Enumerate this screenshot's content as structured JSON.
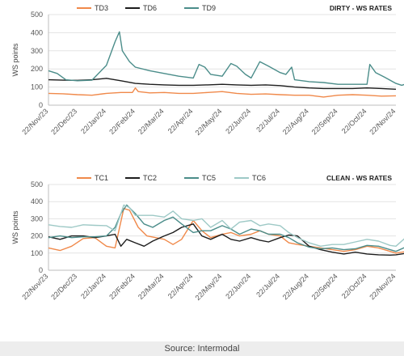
{
  "chart_data": [
    {
      "type": "line",
      "title": "DIRTY - WS RATES",
      "ylabel": "WS points",
      "ylim": [
        0,
        500
      ],
      "yticks": [
        0,
        100,
        200,
        300,
        400,
        500
      ],
      "grid": true,
      "legend_position": "top-left",
      "x_tick_labels": [
        "22/Nov/23",
        "22/Dec/23",
        "22/Jan/24",
        "22/Feb/24",
        "22/Mar/24",
        "22/Apr/24",
        "22/May/24",
        "22/Jun/24",
        "22/Jul/24",
        "22/Aug/24",
        "22/Sep/24",
        "22/Oct/24",
        "22/Nov/24"
      ],
      "series": [
        {
          "name": "TD3",
          "color": "#f0894a",
          "points": [
            [
              0,
              65
            ],
            [
              0.5,
              63
            ],
            [
              1,
              58
            ],
            [
              1.5,
              55
            ],
            [
              2,
              65
            ],
            [
              2.5,
              70
            ],
            [
              2.9,
              70
            ],
            [
              3,
              95
            ],
            [
              3.1,
              75
            ],
            [
              3.5,
              68
            ],
            [
              4,
              70
            ],
            [
              4.5,
              65
            ],
            [
              5,
              65
            ],
            [
              5.5,
              70
            ],
            [
              6,
              75
            ],
            [
              6.5,
              65
            ],
            [
              7,
              60
            ],
            [
              7.5,
              62
            ],
            [
              8,
              58
            ],
            [
              8.5,
              55
            ],
            [
              9,
              55
            ],
            [
              9.5,
              45
            ],
            [
              10,
              55
            ],
            [
              10.5,
              58
            ],
            [
              11,
              55
            ],
            [
              11.5,
              50
            ],
            [
              12,
              52
            ]
          ]
        },
        {
          "name": "TD6",
          "color": "#1d1d1d",
          "points": [
            [
              0,
              140
            ],
            [
              0.5,
              138
            ],
            [
              1,
              137
            ],
            [
              1.5,
              140
            ],
            [
              2,
              148
            ],
            [
              2.5,
              135
            ],
            [
              3,
              120
            ],
            [
              3.5,
              115
            ],
            [
              4,
              112
            ],
            [
              4.5,
              110
            ],
            [
              5,
              110
            ],
            [
              5.5,
              112
            ],
            [
              6,
              115
            ],
            [
              6.5,
              112
            ],
            [
              7,
              110
            ],
            [
              7.5,
              112
            ],
            [
              8,
              108
            ],
            [
              8.5,
              100
            ],
            [
              9,
              95
            ],
            [
              9.5,
              92
            ],
            [
              10,
              92
            ],
            [
              10.5,
              92
            ],
            [
              11,
              95
            ],
            [
              11.5,
              92
            ],
            [
              12,
              88
            ]
          ]
        },
        {
          "name": "TD9",
          "color": "#4b8d8a",
          "points": [
            [
              0,
              190
            ],
            [
              0.3,
              175
            ],
            [
              0.6,
              140
            ],
            [
              1,
              135
            ],
            [
              1.5,
              138
            ],
            [
              2,
              220
            ],
            [
              2.3,
              350
            ],
            [
              2.45,
              405
            ],
            [
              2.55,
              300
            ],
            [
              2.8,
              240
            ],
            [
              3,
              210
            ],
            [
              3.5,
              190
            ],
            [
              4,
              175
            ],
            [
              4.5,
              160
            ],
            [
              5,
              150
            ],
            [
              5.2,
              225
            ],
            [
              5.4,
              210
            ],
            [
              5.6,
              170
            ],
            [
              6,
              160
            ],
            [
              6.3,
              230
            ],
            [
              6.5,
              215
            ],
            [
              6.8,
              170
            ],
            [
              7,
              150
            ],
            [
              7.3,
              240
            ],
            [
              7.6,
              215
            ],
            [
              8,
              180
            ],
            [
              8.2,
              170
            ],
            [
              8.4,
              210
            ],
            [
              8.5,
              140
            ],
            [
              9,
              130
            ],
            [
              9.5,
              125
            ],
            [
              10,
              115
            ],
            [
              10.5,
              115
            ],
            [
              11,
              115
            ],
            [
              11.1,
              225
            ],
            [
              11.3,
              180
            ],
            [
              11.6,
              155
            ],
            [
              12,
              120
            ],
            [
              12.2,
              110
            ],
            [
              12.4,
              120
            ]
          ]
        }
      ]
    },
    {
      "type": "line",
      "title": "CLEAN - WS RATES",
      "ylabel": "WS points",
      "ylim": [
        0,
        500
      ],
      "yticks": [
        0,
        100,
        200,
        300,
        400,
        500
      ],
      "grid": true,
      "legend_position": "top-left",
      "x_tick_labels": [
        "22/Nov/23",
        "22/Dec/23",
        "22/Jan/24",
        "22/Feb/24",
        "22/Mar/24",
        "22/Apr/24",
        "22/May/24",
        "22/Jun/24",
        "22/Jul/24",
        "22/Aug/24",
        "22/Sep/24",
        "22/Oct/24",
        "22/Nov/24"
      ],
      "series": [
        {
          "name": "TC1",
          "color": "#f0894a",
          "points": [
            [
              0,
              130
            ],
            [
              0.4,
              115
            ],
            [
              0.8,
              140
            ],
            [
              1.2,
              185
            ],
            [
              1.6,
              190
            ],
            [
              2,
              140
            ],
            [
              2.3,
              130
            ],
            [
              2.6,
              360
            ],
            [
              2.8,
              350
            ],
            [
              3.1,
              250
            ],
            [
              3.4,
              200
            ],
            [
              3.7,
              190
            ],
            [
              4,
              180
            ],
            [
              4.3,
              150
            ],
            [
              4.6,
              180
            ],
            [
              5,
              290
            ],
            [
              5.3,
              230
            ],
            [
              5.6,
              190
            ],
            [
              6,
              210
            ],
            [
              6.3,
              220
            ],
            [
              6.6,
              200
            ],
            [
              7,
              210
            ],
            [
              7.3,
              230
            ],
            [
              7.6,
              210
            ],
            [
              8,
              200
            ],
            [
              8.3,
              160
            ],
            [
              8.6,
              150
            ],
            [
              9,
              140
            ],
            [
              9.4,
              130
            ],
            [
              9.8,
              120
            ],
            [
              10.2,
              110
            ],
            [
              10.6,
              120
            ],
            [
              11,
              140
            ],
            [
              11.4,
              130
            ],
            [
              11.8,
              110
            ],
            [
              12,
              100
            ],
            [
              12.4,
              110
            ]
          ]
        },
        {
          "name": "TC2",
          "color": "#1d1d1d",
          "points": [
            [
              0,
              195
            ],
            [
              0.4,
              180
            ],
            [
              0.8,
              200
            ],
            [
              1.2,
              200
            ],
            [
              1.6,
              190
            ],
            [
              2,
              200
            ],
            [
              2.3,
              210
            ],
            [
              2.5,
              140
            ],
            [
              2.7,
              180
            ],
            [
              3,
              160
            ],
            [
              3.3,
              140
            ],
            [
              3.6,
              170
            ],
            [
              4,
              200
            ],
            [
              4.3,
              220
            ],
            [
              4.6,
              250
            ],
            [
              5,
              270
            ],
            [
              5.3,
              200
            ],
            [
              5.6,
              180
            ],
            [
              6,
              210
            ],
            [
              6.3,
              180
            ],
            [
              6.6,
              170
            ],
            [
              7,
              190
            ],
            [
              7.3,
              175
            ],
            [
              7.6,
              165
            ],
            [
              8,
              190
            ],
            [
              8.3,
              205
            ],
            [
              8.6,
              200
            ],
            [
              9,
              140
            ],
            [
              9.4,
              120
            ],
            [
              9.8,
              105
            ],
            [
              10.2,
              95
            ],
            [
              10.6,
              105
            ],
            [
              11,
              95
            ],
            [
              11.4,
              90
            ],
            [
              11.8,
              88
            ],
            [
              12,
              90
            ],
            [
              12.4,
              100
            ]
          ]
        },
        {
          "name": "TC5",
          "color": "#4b8d8a",
          "points": [
            [
              0,
              190
            ],
            [
              0.4,
              200
            ],
            [
              0.8,
              190
            ],
            [
              1.2,
              195
            ],
            [
              1.6,
              195
            ],
            [
              2,
              200
            ],
            [
              2.3,
              250
            ],
            [
              2.5,
              330
            ],
            [
              2.7,
              380
            ],
            [
              3,
              330
            ],
            [
              3.3,
              270
            ],
            [
              3.6,
              250
            ],
            [
              4,
              290
            ],
            [
              4.3,
              310
            ],
            [
              4.6,
              270
            ],
            [
              5,
              220
            ],
            [
              5.3,
              230
            ],
            [
              5.6,
              230
            ],
            [
              6,
              260
            ],
            [
              6.3,
              240
            ],
            [
              6.6,
              210
            ],
            [
              7,
              240
            ],
            [
              7.3,
              230
            ],
            [
              7.6,
              210
            ],
            [
              8,
              210
            ],
            [
              8.3,
              190
            ],
            [
              8.6,
              160
            ],
            [
              9,
              135
            ],
            [
              9.4,
              125
            ],
            [
              9.8,
              130
            ],
            [
              10.2,
              120
            ],
            [
              10.6,
              125
            ],
            [
              11,
              145
            ],
            [
              11.4,
              140
            ],
            [
              11.8,
              120
            ],
            [
              12,
              110
            ],
            [
              12.4,
              140
            ]
          ]
        },
        {
          "name": "TC6",
          "color": "#9ec9c6",
          "points": [
            [
              0,
              265
            ],
            [
              0.4,
              255
            ],
            [
              0.8,
              250
            ],
            [
              1.2,
              265
            ],
            [
              1.6,
              262
            ],
            [
              2,
              260
            ],
            [
              2.3,
              230
            ],
            [
              2.6,
              380
            ],
            [
              2.8,
              365
            ],
            [
              3,
              320
            ],
            [
              3.3,
              320
            ],
            [
              3.6,
              320
            ],
            [
              4,
              310
            ],
            [
              4.3,
              345
            ],
            [
              4.6,
              300
            ],
            [
              5,
              290
            ],
            [
              5.3,
              300
            ],
            [
              5.6,
              250
            ],
            [
              6,
              290
            ],
            [
              6.3,
              240
            ],
            [
              6.6,
              280
            ],
            [
              7,
              290
            ],
            [
              7.3,
              260
            ],
            [
              7.6,
              270
            ],
            [
              8,
              260
            ],
            [
              8.3,
              220
            ],
            [
              8.6,
              190
            ],
            [
              9,
              160
            ],
            [
              9.4,
              140
            ],
            [
              9.8,
              150
            ],
            [
              10.2,
              150
            ],
            [
              10.6,
              165
            ],
            [
              11,
              180
            ],
            [
              11.4,
              170
            ],
            [
              11.8,
              145
            ],
            [
              12,
              140
            ],
            [
              12.4,
              200
            ]
          ]
        }
      ]
    }
  ],
  "source": "Source: Intermodal"
}
